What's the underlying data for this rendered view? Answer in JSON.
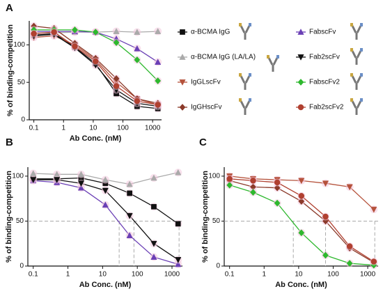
{
  "chart_data": [
    {
      "type": "line",
      "panel": "A",
      "log_x": true,
      "legend": true,
      "xlabel": "Ab Conc. (nM)",
      "ylabel": "% of binding-competition",
      "x": [
        0.1,
        0.48,
        2.4,
        12,
        60,
        300,
        1500
      ],
      "xlim": [
        0.07,
        2000
      ],
      "xticks": [
        0.1,
        1,
        10,
        100,
        1000
      ],
      "ylim": [
        0,
        132
      ],
      "yticks": [
        0,
        50,
        100
      ],
      "series": [
        {
          "name": "α-BCMA IgG",
          "color": "#111111",
          "marker": "square",
          "values": [
            113,
            115,
            97,
            75,
            35,
            18,
            15
          ]
        },
        {
          "name": "α-BCMA IgG (LA/LA)",
          "color": "#aaaaaa",
          "marker": "triangle",
          "values": [
            116,
            116,
            117,
            117,
            118,
            117,
            118
          ]
        },
        {
          "name": "IgGLscFv",
          "color": "#b5523b",
          "marker": "tri-down",
          "values": [
            110,
            112,
            100,
            80,
            50,
            28,
            20
          ]
        },
        {
          "name": "IgGHscFv",
          "color": "#8b3a2a",
          "marker": "diamond",
          "values": [
            125,
            122,
            102,
            82,
            55,
            28,
            22
          ]
        },
        {
          "name": "FabscFv",
          "color": "#6a3fb5",
          "marker": "triangle",
          "values": [
            118,
            118,
            118,
            117,
            108,
            95,
            77
          ]
        },
        {
          "name": "Fab2scFv",
          "color": "#111111",
          "marker": "tri-down",
          "values": [
            112,
            114,
            96,
            73,
            40,
            22,
            18
          ]
        },
        {
          "name": "FabscFv2",
          "color": "#2eb82e",
          "marker": "diamond",
          "values": [
            120,
            120,
            120,
            117,
            103,
            80,
            52
          ]
        },
        {
          "name": "Fab2scFv2",
          "color": "#b04030",
          "marker": "circle",
          "values": [
            115,
            117,
            98,
            78,
            45,
            25,
            20
          ]
        }
      ]
    },
    {
      "type": "line",
      "panel": "B",
      "log_x": true,
      "legend": false,
      "xlabel": "Ab Conc. (nM)",
      "ylabel": "% of binding-competition",
      "x": [
        0.1,
        0.48,
        2.4,
        12,
        60,
        300,
        1500
      ],
      "xlim": [
        0.07,
        2000
      ],
      "xticks": [
        0.1,
        1,
        10,
        100,
        1000
      ],
      "ylim": [
        0,
        110
      ],
      "yticks": [
        0,
        50,
        100
      ],
      "ref_y": 50,
      "ref_x": [
        30,
        80,
        1600
      ],
      "series": [
        {
          "name": "α-BCMA IgG",
          "color": "#111111",
          "marker": "square",
          "values": [
            97,
            97,
            98,
            92,
            81,
            66,
            47
          ]
        },
        {
          "name": "α-BCMA IgG (LA/LA)",
          "color": "#aaaaaa",
          "marker": "triangle",
          "values": [
            103,
            102,
            102,
            96,
            91,
            98,
            104
          ]
        },
        {
          "name": "FabscFv",
          "color": "#6a3fb5",
          "marker": "triangle",
          "values": [
            95,
            93,
            87,
            68,
            34,
            10,
            2
          ]
        },
        {
          "name": "Fab2scFv",
          "color": "#111111",
          "marker": "tri-down",
          "values": [
            96,
            96,
            92,
            84,
            56,
            25,
            7
          ]
        }
      ]
    },
    {
      "type": "line",
      "panel": "C",
      "log_x": true,
      "legend": false,
      "xlabel": "Ab Conc. (nM)",
      "ylabel": "% of binding-competition",
      "x": [
        0.1,
        0.48,
        2.4,
        12,
        60,
        300,
        1500
      ],
      "xlim": [
        0.07,
        2000
      ],
      "xticks": [
        0.1,
        1,
        10,
        100,
        1000
      ],
      "ylim": [
        0,
        110
      ],
      "yticks": [
        0,
        50,
        100
      ],
      "ref_y": 50,
      "ref_x": [
        7,
        60,
        1600
      ],
      "series": [
        {
          "name": "IgGLscFv",
          "color": "#b5523b",
          "marker": "tri-down",
          "values": [
            100,
            97,
            96,
            95,
            92,
            88,
            63
          ]
        },
        {
          "name": "IgGHscFv",
          "color": "#8b3a2a",
          "marker": "diamond",
          "values": [
            95,
            88,
            87,
            72,
            50,
            20,
            4
          ]
        },
        {
          "name": "FabscFv2",
          "color": "#2eb82e",
          "marker": "diamond",
          "values": [
            90,
            82,
            70,
            37,
            12,
            3,
            1
          ]
        },
        {
          "name": "Fab2scFv2",
          "color": "#b04030",
          "marker": "circle",
          "values": [
            97,
            95,
            93,
            78,
            55,
            22,
            5
          ]
        }
      ]
    }
  ]
}
